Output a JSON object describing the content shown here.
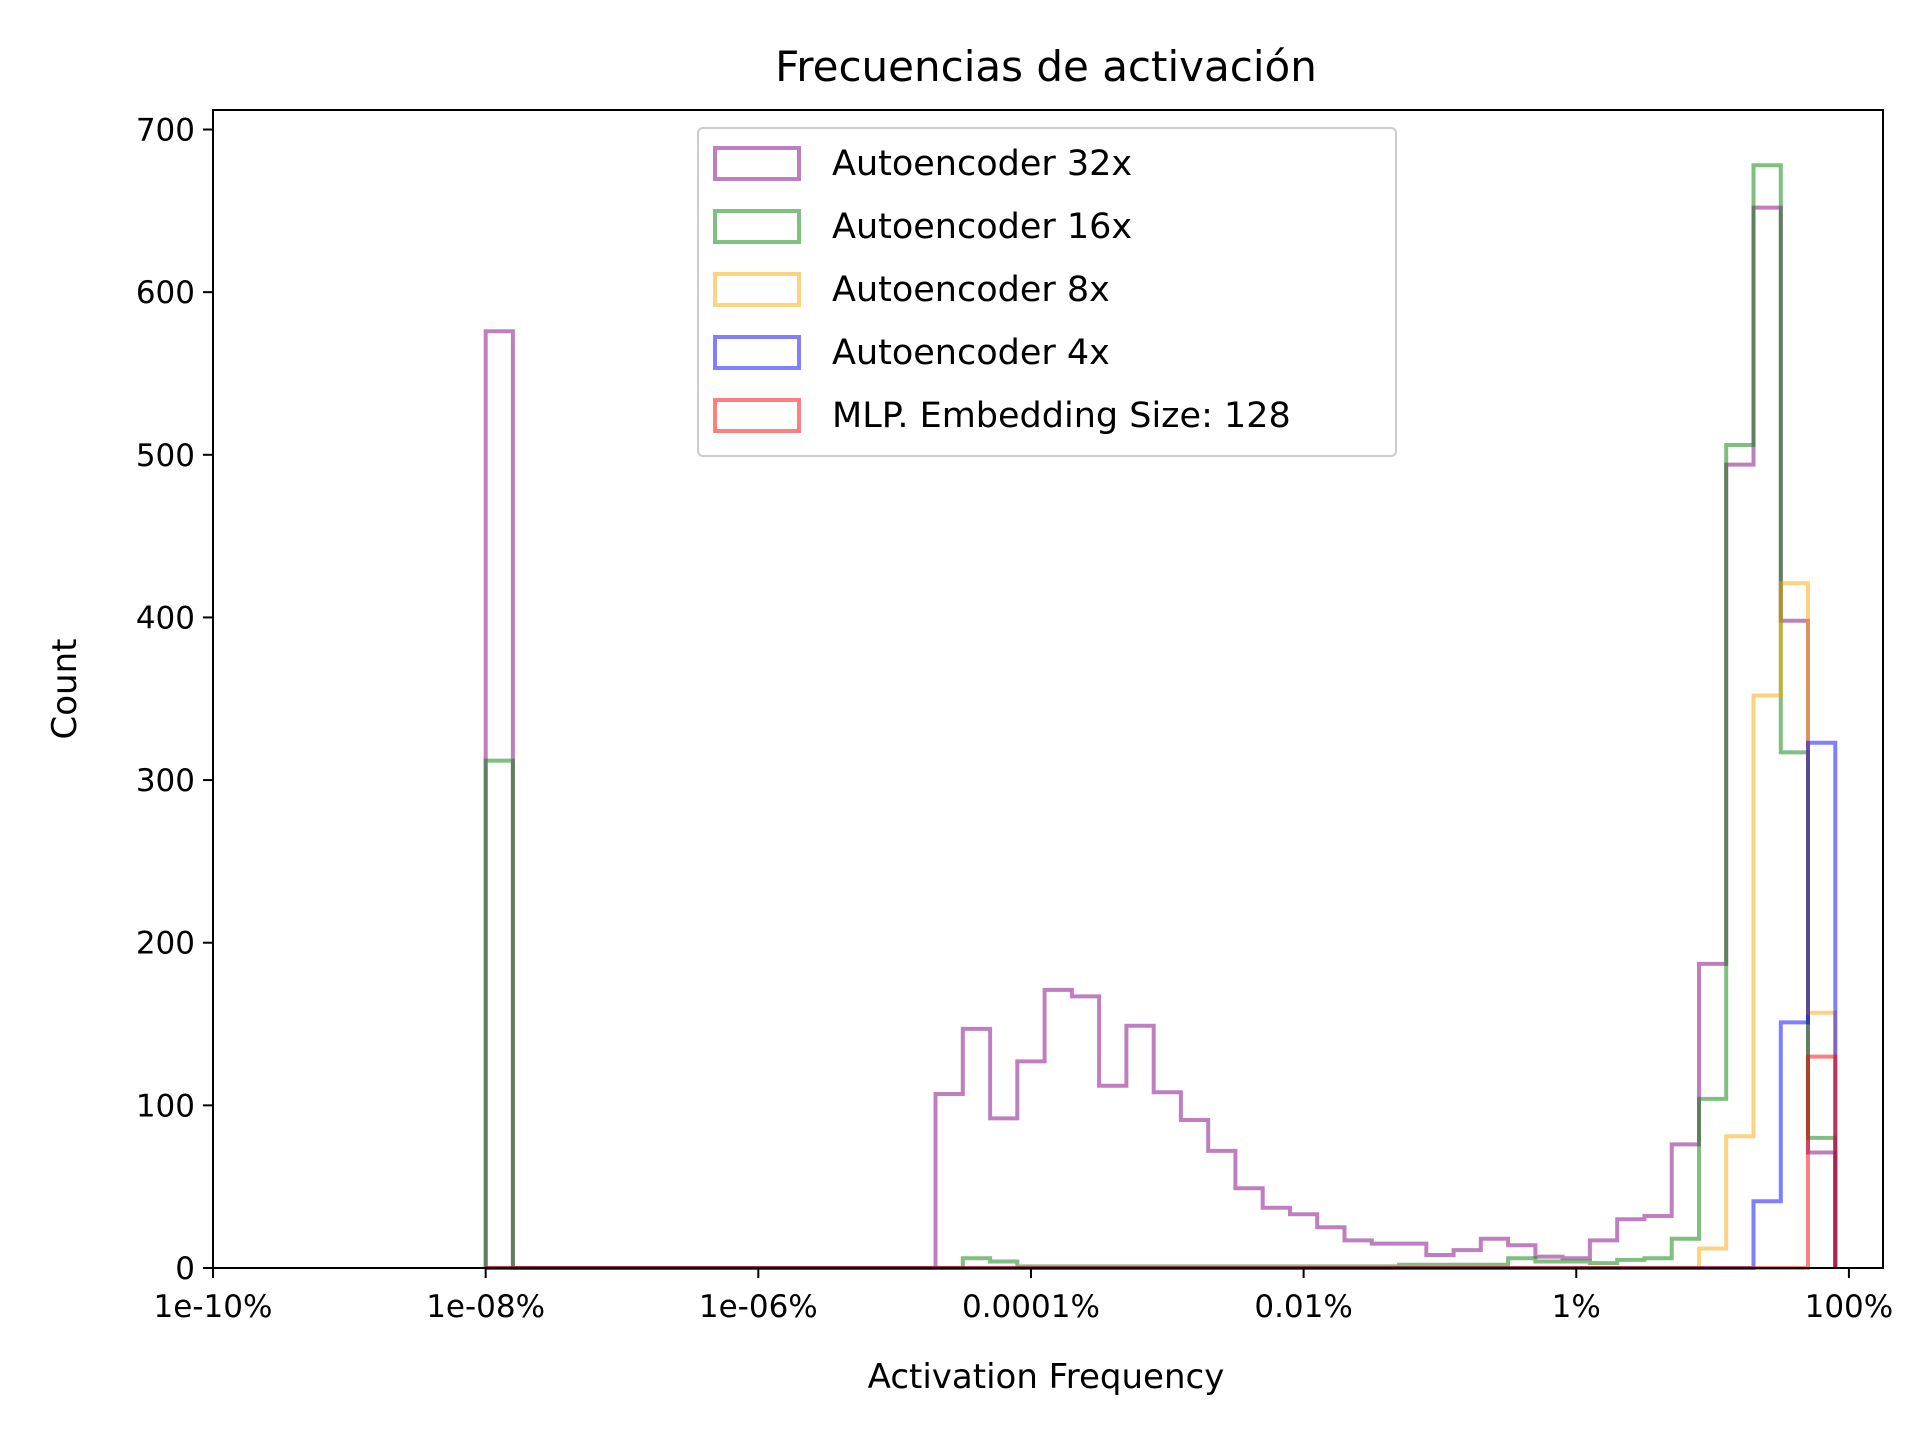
{
  "chart_data": {
    "type": "histogram",
    "title": "Frecuencias de activación",
    "xlabel": "Activation Frequency",
    "ylabel": "Count",
    "x_scale": "log10",
    "x_unit": "percent",
    "xlim_log10_percent": [
      -10.0,
      2.25
    ],
    "ylim": [
      0,
      712
    ],
    "x_ticks": [
      {
        "value_log10_percent": -10,
        "label": "1e-10%"
      },
      {
        "value_log10_percent": -8,
        "label": "1e-08%"
      },
      {
        "value_log10_percent": -6,
        "label": "1e-06%"
      },
      {
        "value_log10_percent": -4,
        "label": "0.0001%"
      },
      {
        "value_log10_percent": -2,
        "label": "0.01%"
      },
      {
        "value_log10_percent": 0,
        "label": "1%"
      },
      {
        "value_log10_percent": 2,
        "label": "100%"
      }
    ],
    "y_ticks": [
      0,
      100,
      200,
      300,
      400,
      500,
      600,
      700
    ],
    "grid": false,
    "legend_position": "top-center",
    "series": [
      {
        "name": "Autoencoder 32x",
        "color": "#800080",
        "bins": [
          [
            -8.0,
            -7.8,
            576
          ],
          [
            -7.8,
            -4.7,
            0
          ],
          [
            -4.7,
            -4.5,
            107
          ],
          [
            -4.5,
            -4.3,
            147
          ],
          [
            -4.3,
            -4.1,
            92
          ],
          [
            -4.1,
            -3.9,
            127
          ],
          [
            -3.9,
            -3.7,
            171
          ],
          [
            -3.7,
            -3.5,
            167
          ],
          [
            -3.5,
            -3.3,
            112
          ],
          [
            -3.3,
            -3.1,
            149
          ],
          [
            -3.1,
            -2.9,
            108
          ],
          [
            -2.9,
            -2.7,
            91
          ],
          [
            -2.7,
            -2.5,
            72
          ],
          [
            -2.5,
            -2.3,
            49
          ],
          [
            -2.3,
            -2.1,
            37
          ],
          [
            -2.1,
            -1.9,
            33
          ],
          [
            -1.9,
            -1.7,
            25
          ],
          [
            -1.7,
            -1.5,
            17
          ],
          [
            -1.5,
            -1.3,
            15
          ],
          [
            -1.3,
            -1.1,
            15
          ],
          [
            -1.1,
            -0.9,
            8
          ],
          [
            -0.9,
            -0.7,
            11
          ],
          [
            -0.7,
            -0.5,
            18
          ],
          [
            -0.5,
            -0.3,
            14
          ],
          [
            -0.3,
            -0.1,
            7
          ],
          [
            -0.1,
            0.1,
            6
          ],
          [
            0.1,
            0.3,
            17
          ],
          [
            0.3,
            0.5,
            30
          ],
          [
            0.5,
            0.7,
            32
          ],
          [
            0.7,
            0.9,
            76
          ],
          [
            0.9,
            1.1,
            187
          ],
          [
            1.1,
            1.3,
            494
          ],
          [
            1.3,
            1.5,
            652
          ],
          [
            1.5,
            1.7,
            398
          ],
          [
            1.7,
            1.9,
            71
          ]
        ]
      },
      {
        "name": "Autoencoder 16x",
        "color": "#008000",
        "bins": [
          [
            -8.0,
            -7.8,
            312
          ],
          [
            -7.8,
            -4.5,
            0
          ],
          [
            -4.5,
            -4.3,
            6
          ],
          [
            -4.3,
            -4.1,
            4
          ],
          [
            -4.1,
            -1.3,
            1
          ],
          [
            -1.3,
            -0.5,
            2
          ],
          [
            -0.5,
            -0.3,
            6
          ],
          [
            -0.3,
            0.1,
            4
          ],
          [
            0.1,
            0.3,
            3
          ],
          [
            0.3,
            0.5,
            5
          ],
          [
            0.5,
            0.7,
            6
          ],
          [
            0.7,
            0.9,
            18
          ],
          [
            0.9,
            1.1,
            104
          ],
          [
            1.1,
            1.3,
            506
          ],
          [
            1.3,
            1.5,
            678
          ],
          [
            1.5,
            1.7,
            317
          ],
          [
            1.7,
            1.9,
            80
          ]
        ]
      },
      {
        "name": "Autoencoder 8x",
        "color": "#FFA500",
        "bins": [
          [
            -8.0,
            0.9,
            0
          ],
          [
            0.9,
            1.1,
            12
          ],
          [
            1.1,
            1.3,
            81
          ],
          [
            1.3,
            1.5,
            352
          ],
          [
            1.5,
            1.7,
            421
          ],
          [
            1.7,
            1.9,
            157
          ]
        ]
      },
      {
        "name": "Autoencoder 4x",
        "color": "#0000FF",
        "bins": [
          [
            -8.0,
            1.3,
            0
          ],
          [
            1.3,
            1.5,
            41
          ],
          [
            1.5,
            1.7,
            151
          ],
          [
            1.7,
            1.9,
            323
          ]
        ]
      },
      {
        "name": "MLP. Embedding Size: 128",
        "color": "#FF0000",
        "bins": [
          [
            -8.0,
            1.7,
            0
          ],
          [
            1.7,
            1.9,
            130
          ]
        ]
      }
    ]
  }
}
